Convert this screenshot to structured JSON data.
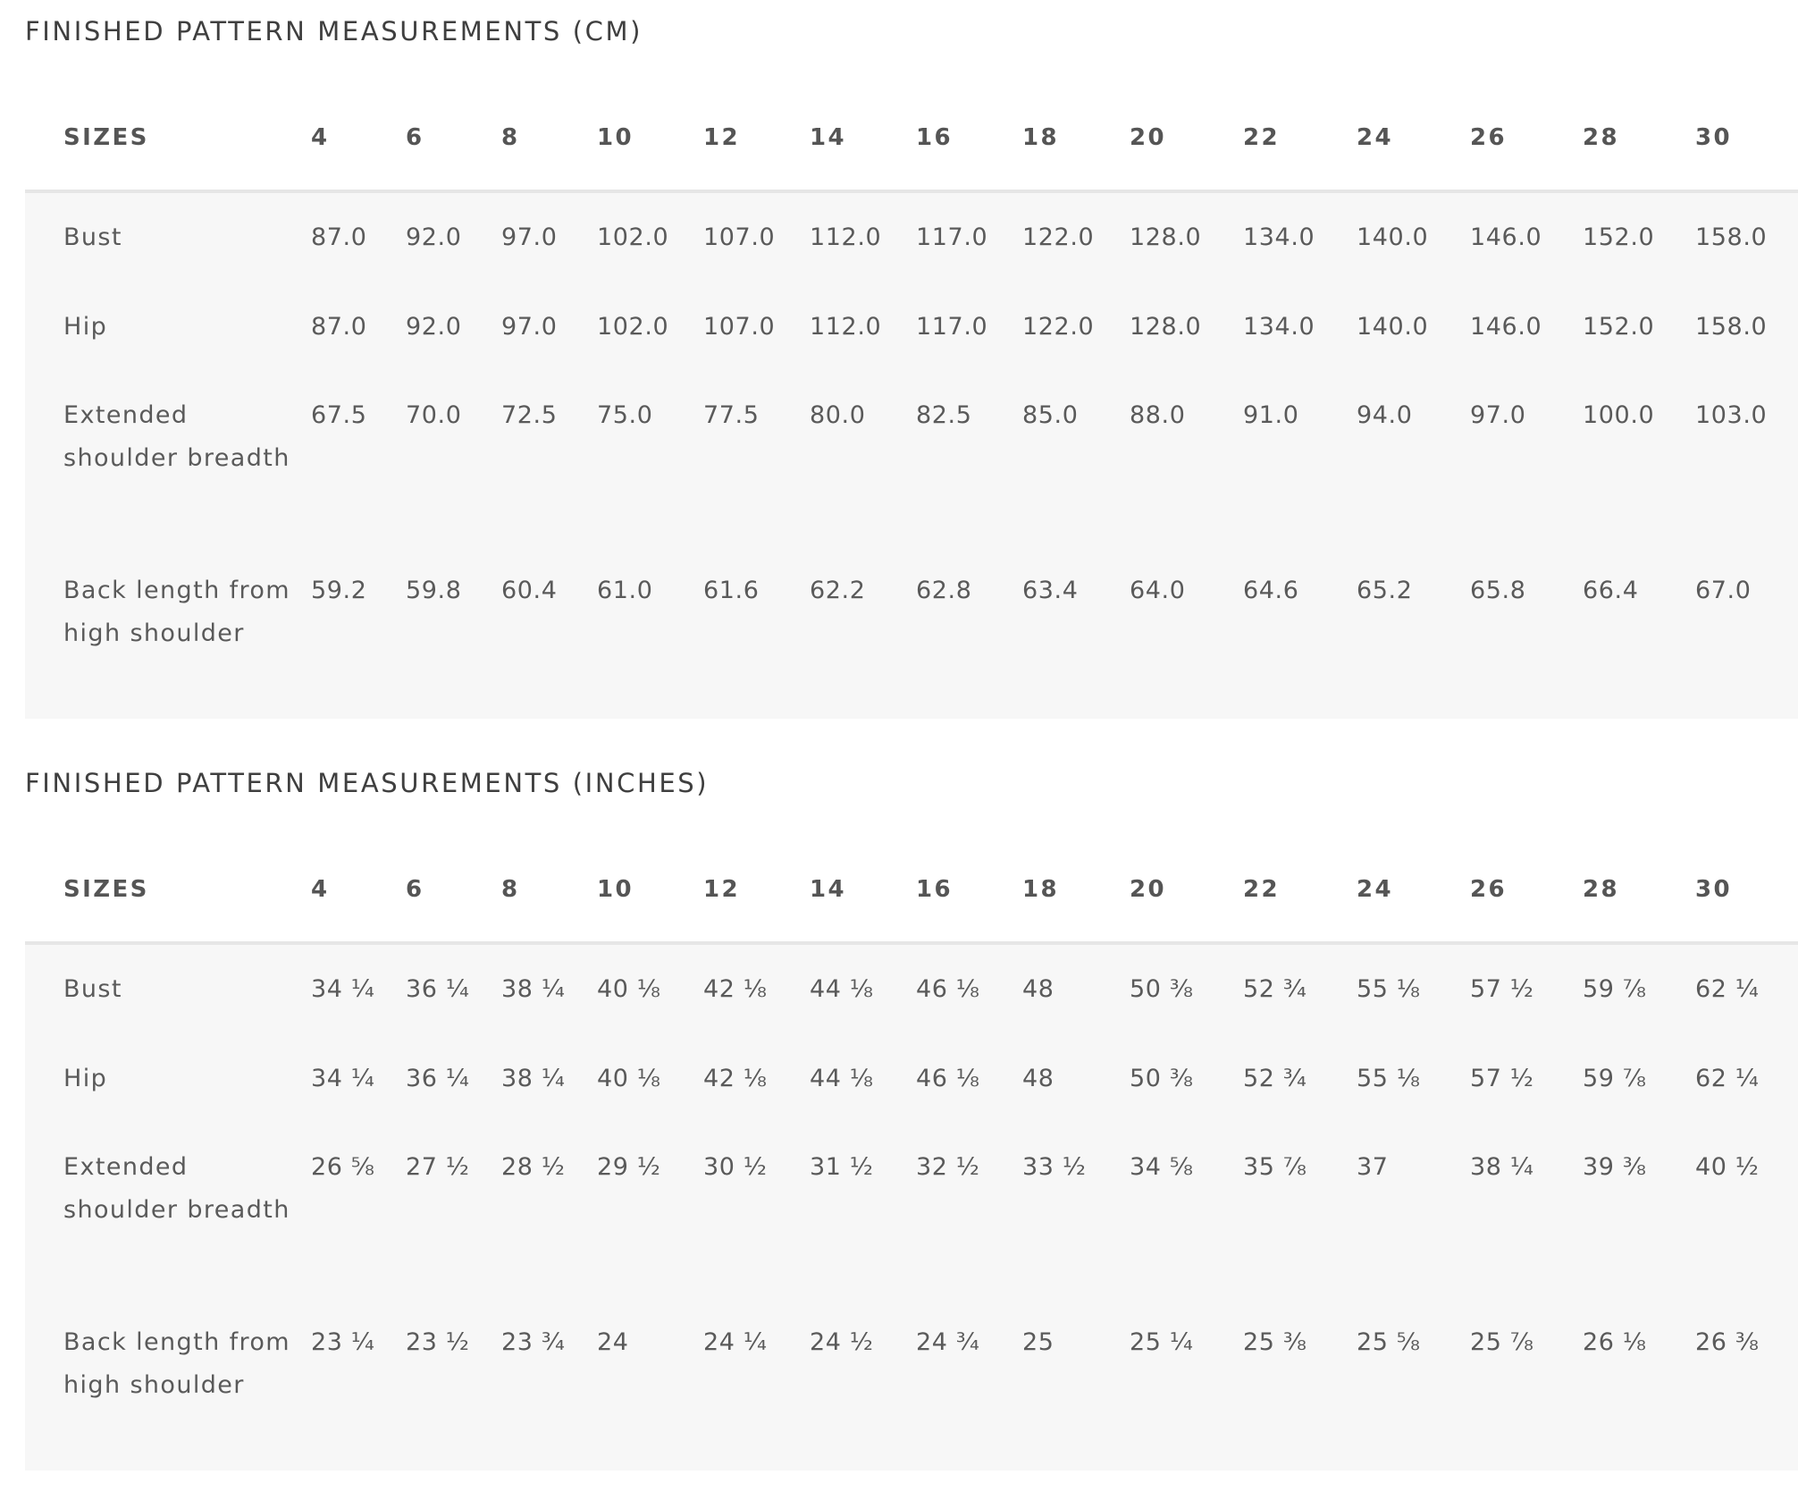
{
  "cm": {
    "title": "FINISHED PATTERN MEASUREMENTS (CM)",
    "sizes_label": "SIZES",
    "sizes": [
      "4",
      "6",
      "8",
      "10",
      "12",
      "14",
      "16",
      "18",
      "20",
      "22",
      "24",
      "26",
      "28",
      "30"
    ],
    "rows": [
      {
        "label": "Bust",
        "values": [
          "87.0",
          "92.0",
          "97.0",
          "102.0",
          "107.0",
          "112.0",
          "117.0",
          "122.0",
          "128.0",
          "134.0",
          "140.0",
          "146.0",
          "152.0",
          "158.0"
        ]
      },
      {
        "label": "Hip",
        "values": [
          "87.0",
          "92.0",
          "97.0",
          "102.0",
          "107.0",
          "112.0",
          "117.0",
          "122.0",
          "128.0",
          "134.0",
          "140.0",
          "146.0",
          "152.0",
          "158.0"
        ]
      },
      {
        "label": "Extended shoulder breadth",
        "values": [
          "67.5",
          "70.0",
          "72.5",
          "75.0",
          "77.5",
          "80.0",
          "82.5",
          "85.0",
          "88.0",
          "91.0",
          "94.0",
          "97.0",
          "100.0",
          "103.0"
        ]
      },
      {
        "label": "Back length from high shoulder",
        "values": [
          "59.2",
          "59.8",
          "60.4",
          "61.0",
          "61.6",
          "62.2",
          "62.8",
          "63.4",
          "64.0",
          "64.6",
          "65.2",
          "65.8",
          "66.4",
          "67.0"
        ]
      }
    ]
  },
  "inches": {
    "title": "FINISHED PATTERN MEASUREMENTS (INCHES)",
    "sizes_label": "SIZES",
    "sizes": [
      "4",
      "6",
      "8",
      "10",
      "12",
      "14",
      "16",
      "18",
      "20",
      "22",
      "24",
      "26",
      "28",
      "30"
    ],
    "rows": [
      {
        "label": "Bust",
        "values": [
          "34 ¼",
          "36 ¼",
          "38 ¼",
          "40 ⅛",
          "42 ⅛",
          "44 ⅛",
          "46 ⅛",
          "48",
          "50 ⅜",
          "52 ¾",
          "55 ⅛",
          "57 ½",
          "59 ⅞",
          "62 ¼"
        ]
      },
      {
        "label": "Hip",
        "values": [
          "34 ¼",
          "36 ¼",
          "38 ¼",
          "40 ⅛",
          "42 ⅛",
          "44 ⅛",
          "46 ⅛",
          "48",
          "50 ⅜",
          "52 ¾",
          "55 ⅛",
          "57 ½",
          "59 ⅞",
          "62 ¼"
        ]
      },
      {
        "label": "Extended shoulder breadth",
        "values": [
          "26 ⅝",
          "27 ½",
          "28 ½",
          "29 ½",
          "30 ½",
          "31 ½",
          "32 ½",
          "33 ½",
          "34 ⅝",
          "35 ⅞",
          "37",
          "38 ¼",
          "39 ⅜",
          "40 ½"
        ]
      },
      {
        "label": "Back length from high shoulder",
        "values": [
          "23 ¼",
          "23 ½",
          "23 ¾",
          "24",
          "24 ¼",
          "24 ½",
          "24 ¾",
          "25",
          "25 ¼",
          "25 ⅜",
          "25 ⅝",
          "25 ⅞",
          "26 ⅛",
          "26 ⅜"
        ]
      }
    ]
  }
}
